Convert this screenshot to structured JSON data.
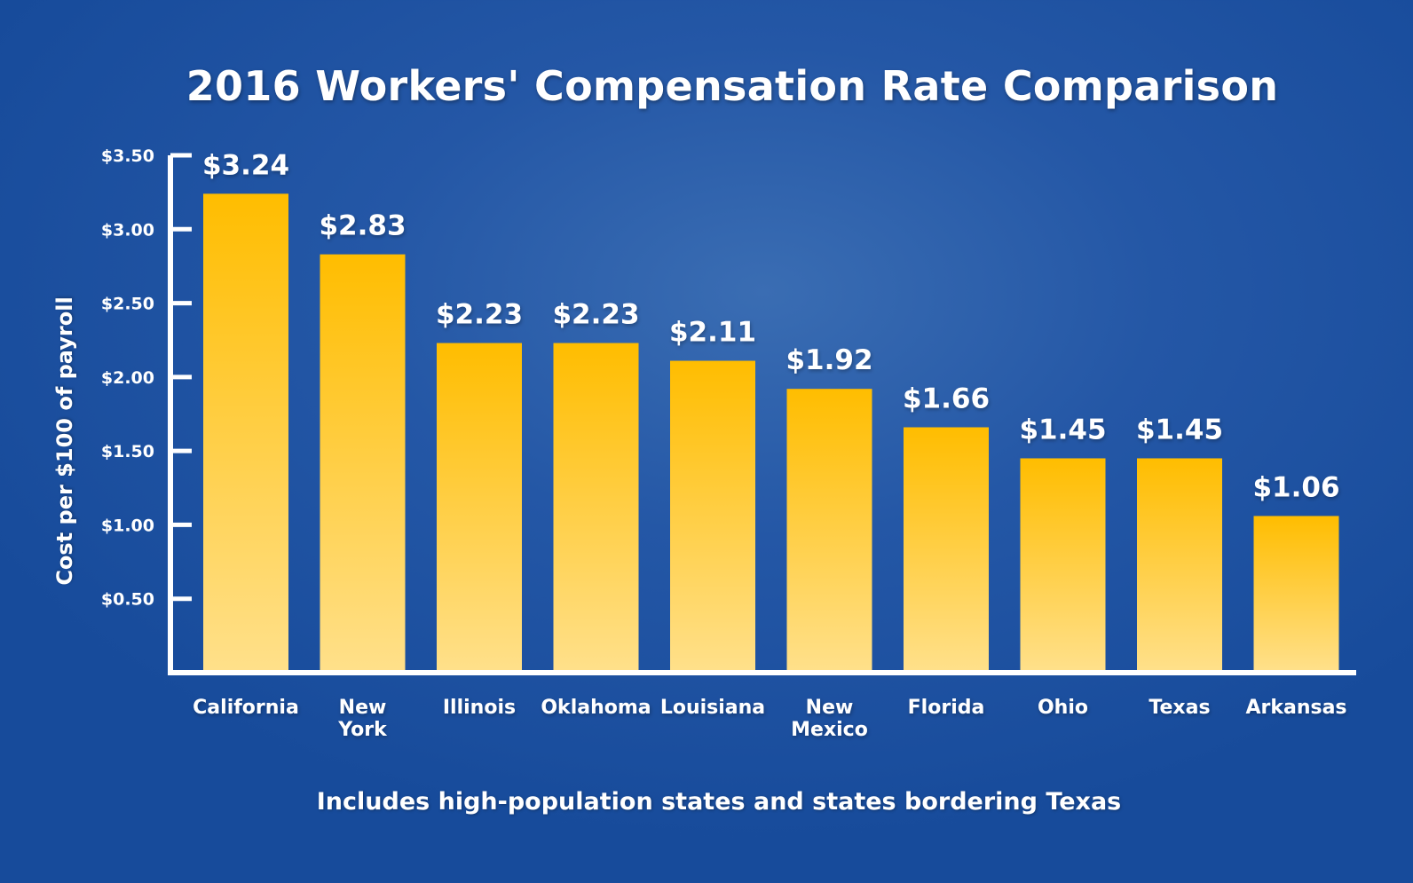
{
  "chart_data": {
    "type": "bar",
    "title": "2016 Workers' Compensation Rate Comparison",
    "ylabel": "Cost per $100 of payroll",
    "xlabel": "",
    "footnote": "Includes high-population states and states bordering Texas",
    "ylim": [
      0,
      3.5
    ],
    "yticks": [
      {
        "value": 0.5,
        "label": "$0.50"
      },
      {
        "value": 1.0,
        "label": "$1.00"
      },
      {
        "value": 1.5,
        "label": "$1.50"
      },
      {
        "value": 2.0,
        "label": "$2.00"
      },
      {
        "value": 2.5,
        "label": "$2.50"
      },
      {
        "value": 3.0,
        "label": "$3.00"
      },
      {
        "value": 3.5,
        "label": "$3.50"
      }
    ],
    "categories": [
      [
        "California"
      ],
      [
        "New",
        "York"
      ],
      [
        "Illinois"
      ],
      [
        "Oklahoma"
      ],
      [
        "Louisiana"
      ],
      [
        "New",
        "Mexico"
      ],
      [
        "Florida"
      ],
      [
        "Ohio"
      ],
      [
        "Texas"
      ],
      [
        "Arkansas"
      ]
    ],
    "values": [
      3.24,
      2.83,
      2.23,
      2.23,
      2.11,
      1.92,
      1.66,
      1.45,
      1.45,
      1.06
    ],
    "value_labels": [
      "$3.24",
      "$2.83",
      "$2.23",
      "$2.23",
      "$2.11",
      "$1.92",
      "$1.66",
      "$1.45",
      "$1.45",
      "$1.06"
    ],
    "colors": {
      "bar_top": "#ffbd00",
      "bar_bottom": "#ffe08a",
      "axis": "#ffffff",
      "text": "#ffffff"
    }
  }
}
